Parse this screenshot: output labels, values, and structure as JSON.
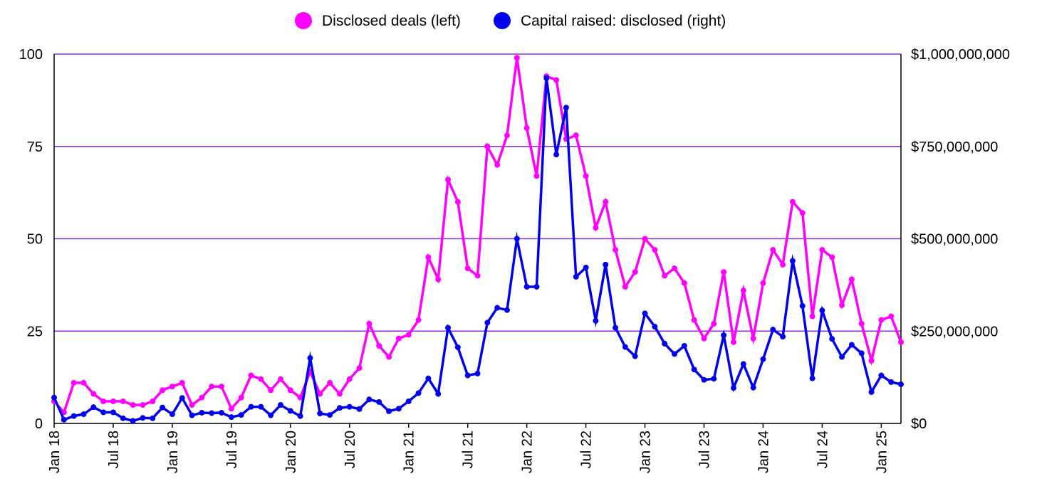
{
  "chart_data": {
    "type": "line",
    "title": "",
    "xlabel": "",
    "ylabel_left": "",
    "ylabel_right": "",
    "grid": true,
    "legend_position": "top-center",
    "colors": {
      "deals": "#ff00ff",
      "capital": "#0000ee",
      "grid": "#8a2be2",
      "axis": "#000000"
    },
    "y_left": {
      "min": 0,
      "max": 100,
      "ticks": [
        0,
        25,
        50,
        75,
        100
      ],
      "tick_labels": [
        "0",
        "25",
        "50",
        "75",
        "100"
      ]
    },
    "y_right": {
      "min": 0,
      "max": 1000000000,
      "ticks": [
        0,
        250000000,
        500000000,
        750000000,
        1000000000
      ],
      "tick_labels": [
        "$0",
        "$250,000,000",
        "$500,000,000",
        "$750,000,000",
        "$1,000,000,000"
      ]
    },
    "x_tick_labels": [
      {
        "index": 0,
        "label": "Jan 18"
      },
      {
        "index": 6,
        "label": "Jul 18"
      },
      {
        "index": 12,
        "label": "Jan 19"
      },
      {
        "index": 18,
        "label": "Jul 19"
      },
      {
        "index": 24,
        "label": "Jan 20"
      },
      {
        "index": 30,
        "label": "Jul 20"
      },
      {
        "index": 36,
        "label": "Jan 21"
      },
      {
        "index": 42,
        "label": "Jul 21"
      },
      {
        "index": 48,
        "label": "Jan 22"
      },
      {
        "index": 54,
        "label": "Jul 22"
      },
      {
        "index": 60,
        "label": "Jan 23"
      },
      {
        "index": 66,
        "label": "Jul 23"
      },
      {
        "index": 72,
        "label": "Jan 24"
      },
      {
        "index": 78,
        "label": "Jul 24"
      },
      {
        "index": 84,
        "label": "Jan 25"
      }
    ],
    "point_count": 87,
    "series": [
      {
        "name": "Disclosed deals (left)",
        "axis": "left",
        "color": "#ff00ff",
        "values": [
          6,
          3,
          11,
          11,
          8,
          6,
          6,
          6,
          5,
          5,
          6,
          9,
          10,
          11,
          5,
          7,
          10,
          10,
          4,
          7,
          13,
          12,
          9,
          12,
          9,
          7,
          14,
          8,
          11,
          8,
          12,
          15,
          27,
          21,
          18,
          23,
          24,
          28,
          45,
          39,
          66,
          60,
          42,
          40,
          75,
          70,
          78,
          99,
          80,
          67,
          94,
          93,
          77,
          78,
          67,
          53,
          60,
          47,
          37,
          41,
          50,
          47,
          40,
          42,
          38,
          28,
          23,
          27,
          41,
          22,
          36,
          23,
          38,
          47,
          43,
          60,
          57,
          29,
          47,
          45,
          32,
          39,
          27,
          17,
          28,
          29,
          22
        ]
      },
      {
        "name": "Capital raised: disclosed (right)",
        "axis": "right",
        "color": "#0000ee",
        "values": [
          70000000,
          10000000,
          20000000,
          25000000,
          44000000,
          30000000,
          30000000,
          14000000,
          7000000,
          15000000,
          14000000,
          43000000,
          25000000,
          69000000,
          22000000,
          29000000,
          28000000,
          29000000,
          17000000,
          23000000,
          45000000,
          45000000,
          22000000,
          50000000,
          34000000,
          20000000,
          177000000,
          27000000,
          23000000,
          42000000,
          45000000,
          39000000,
          65000000,
          58000000,
          33000000,
          40000000,
          60000000,
          82000000,
          122000000,
          80000000,
          259000000,
          206000000,
          130000000,
          135000000,
          273000000,
          313000000,
          307000000,
          500000000,
          370000000,
          370000000,
          935000000,
          728000000,
          855000000,
          397000000,
          422000000,
          278000000,
          430000000,
          259000000,
          207000000,
          182000000,
          298000000,
          262000000,
          216000000,
          188000000,
          210000000,
          146000000,
          118000000,
          121000000,
          239000000,
          96000000,
          161000000,
          97000000,
          174000000,
          254000000,
          235000000,
          440000000,
          318000000,
          122000000,
          306000000,
          229000000,
          180000000,
          213000000,
          190000000,
          85000000,
          130000000,
          112000000,
          106000000
        ]
      }
    ]
  }
}
